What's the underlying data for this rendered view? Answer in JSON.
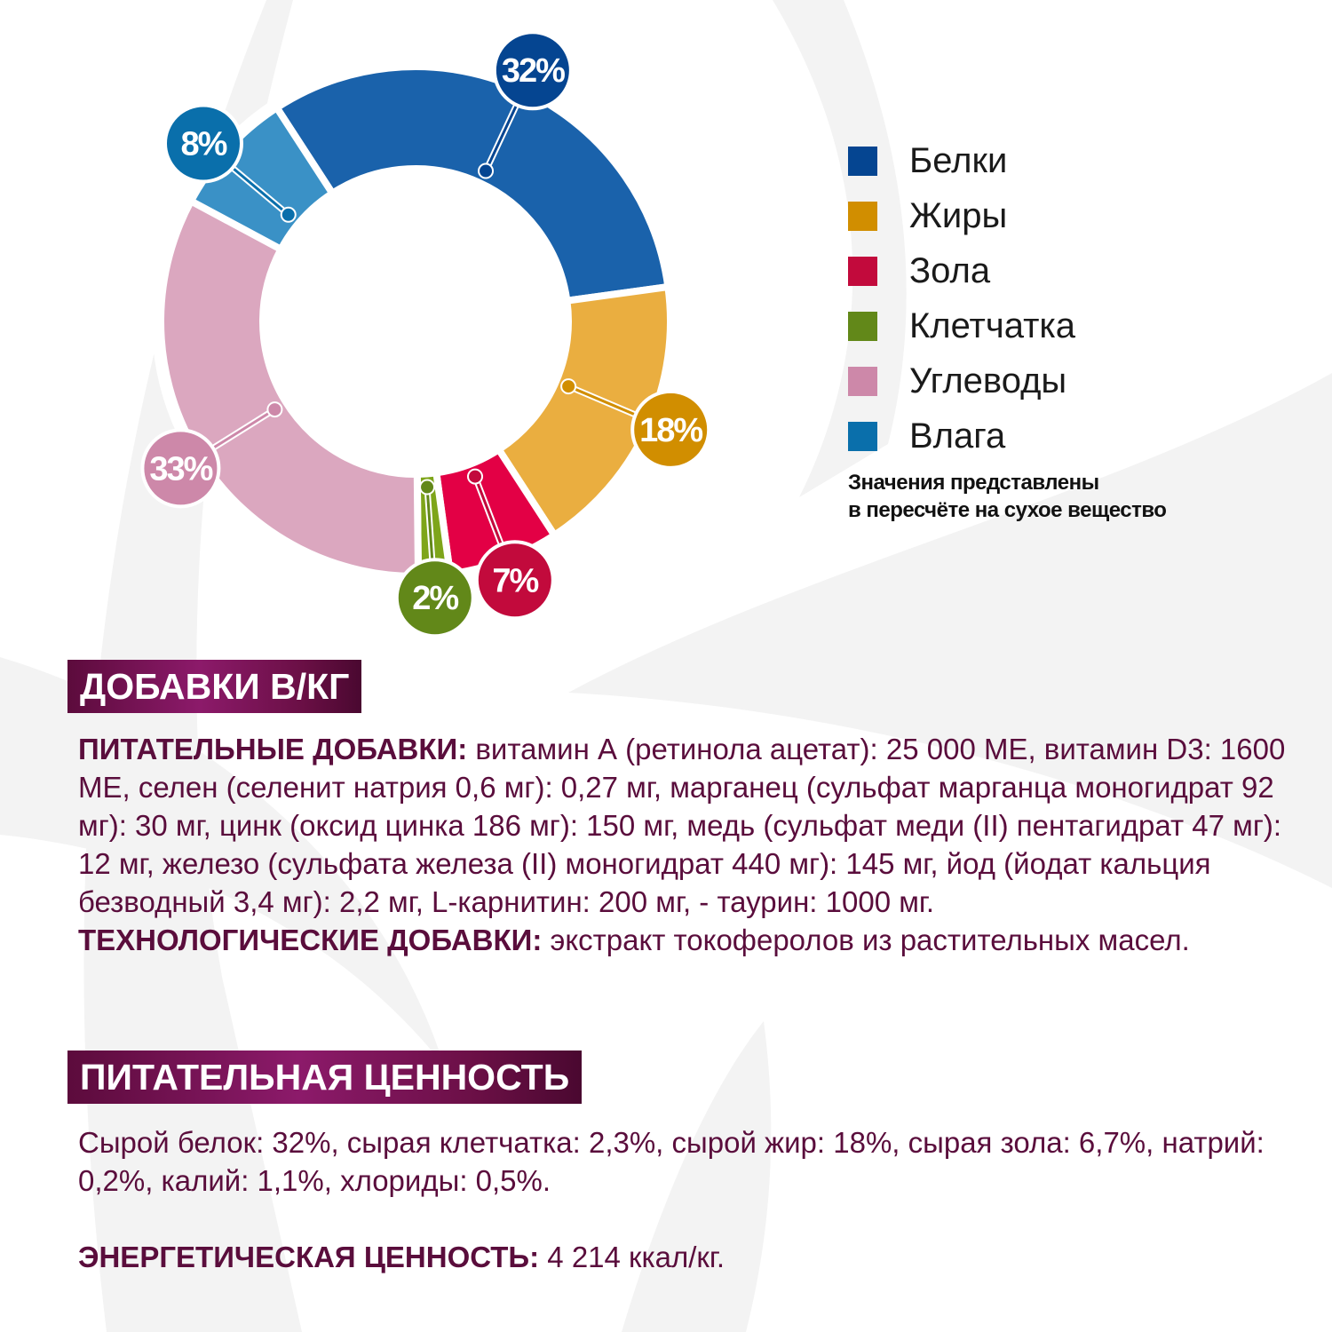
{
  "chart_data": {
    "type": "pie",
    "donut": true,
    "categories": [
      "Белки",
      "Жиры",
      "Зола",
      "Клетчатка",
      "Углеводы",
      "Влага"
    ],
    "values": [
      32,
      18,
      7,
      2,
      33,
      8
    ],
    "data_labels": [
      "32%",
      "18%",
      "7%",
      "2%",
      "33%",
      "8%"
    ],
    "segment_colors": [
      "#1a62ab",
      "#eaae40",
      "#e30045",
      "#7ea51a",
      "#dba7bf",
      "#3a91c6"
    ],
    "label_colors": [
      "#054591",
      "#d18e00",
      "#c20a3c",
      "#628819",
      "#cd88a9",
      "#0a6fab"
    ],
    "legend_placement": "right",
    "note": [
      "Значения представлены",
      "в пересчёте на сухое вещество"
    ]
  },
  "additives": {
    "title": "ДОБАВКИ В/КГ",
    "nutritional_label": "ПИТАТЕЛЬНЫЕ ДОБАВКИ:",
    "nutritional_text": " витамин А (ретинола ацетат): 25 000 МЕ, витамин D3: 1600 МЕ, селен (селенит натрия 0,6 мг): 0,27 мг, марганец (сульфат марганца моногидрат 92 мг): 30 мг, цинк (оксид цинка 186 мг): 150 мг, медь (сульфат меди (II) пентагидрат 47 мг): 12 мг, железо (сульфата железа (II) моногидрат 440 мг): 145 мг, йод (йодат кальция безводный 3,4 мг): 2,2 мг, L-карнитин: 200 мг, - таурин: 1000 мг.",
    "tech_label": "ТЕХНОЛОГИЧЕСКИЕ ДОБАВКИ:",
    "tech_text": " экстракт токоферолов из растительных масел."
  },
  "nutrition": {
    "title": "ПИТАТЕЛЬНАЯ ЦЕННОСТЬ",
    "text": "Сырой белок: 32%, сырая клетчатка: 2,3%, сырой жир: 18%, сырая зола: 6,7%, натрий: 0,2%, калий: 1,1%, хлориды: 0,5%.",
    "energy_label": "ЭНЕРГЕТИЧЕСКАЯ ЦЕННОСТЬ:",
    "energy_text": " 4 214 ккал/кг."
  }
}
